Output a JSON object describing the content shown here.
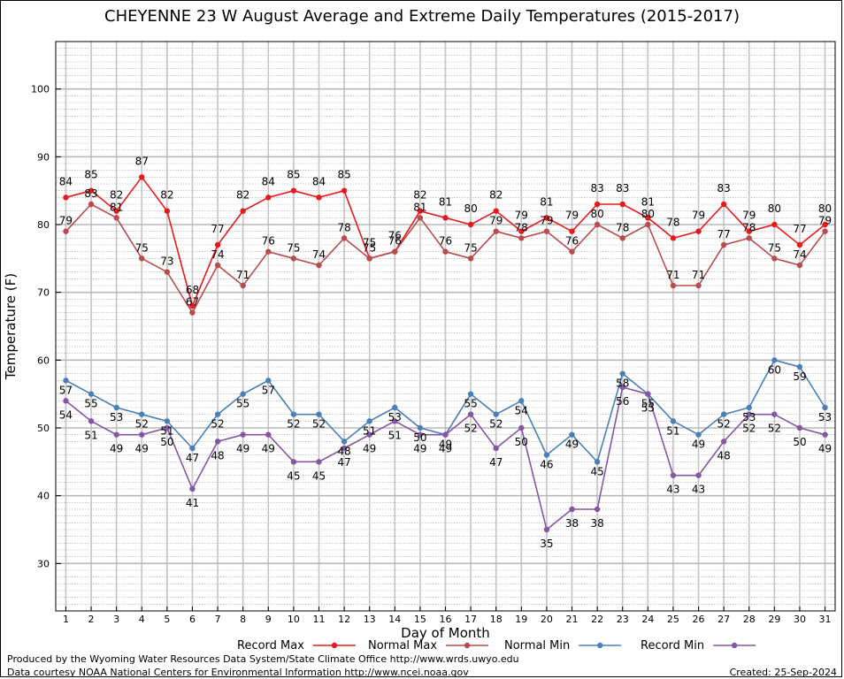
{
  "chart_data": {
    "type": "line",
    "title": "CHEYENNE 23 W August Average and Extreme Daily Temperatures (2015-2017)",
    "xlabel": "Day of Month",
    "ylabel": "Temperature (F)",
    "ylim": [
      23,
      107
    ],
    "yticks": [
      30,
      40,
      50,
      60,
      70,
      80,
      90,
      100
    ],
    "x": [
      1,
      2,
      3,
      4,
      5,
      6,
      7,
      8,
      9,
      10,
      11,
      12,
      13,
      14,
      15,
      16,
      17,
      18,
      19,
      20,
      21,
      22,
      23,
      24,
      25,
      26,
      27,
      28,
      29,
      30,
      31
    ],
    "grid": true,
    "legend_position": "bottom",
    "series": [
      {
        "name": "Record Max",
        "color": "#e8191c",
        "label_offset": -14,
        "values": [
          84,
          85,
          82,
          87,
          82,
          68,
          77,
          82,
          84,
          85,
          84,
          85,
          75,
          76,
          82,
          81,
          80,
          82,
          79,
          81,
          79,
          83,
          83,
          81,
          78,
          79,
          83,
          79,
          80,
          77,
          80
        ]
      },
      {
        "name": "Normal Max",
        "color": "#b84b4e",
        "label_offset": -8,
        "values": [
          79,
          83,
          81,
          75,
          73,
          67,
          74,
          71,
          76,
          75,
          74,
          78,
          75,
          76,
          81,
          76,
          75,
          79,
          78,
          79,
          76,
          80,
          78,
          80,
          71,
          71,
          77,
          78,
          75,
          74,
          79
        ]
      },
      {
        "name": "Normal Min",
        "color": "#4a80b5",
        "label_offset": 15,
        "values": [
          57,
          55,
          53,
          52,
          51,
          47,
          52,
          55,
          57,
          52,
          52,
          48,
          51,
          53,
          50,
          49,
          55,
          52,
          54,
          46,
          49,
          45,
          58,
          55,
          51,
          49,
          52,
          53,
          60,
          59,
          53
        ]
      },
      {
        "name": "Record Min",
        "color": "#8456a3",
        "label_offset": 20,
        "values": [
          54,
          51,
          49,
          49,
          50,
          41,
          48,
          49,
          49,
          45,
          45,
          47,
          49,
          51,
          49,
          49,
          52,
          47,
          50,
          35,
          38,
          38,
          56,
          55,
          43,
          43,
          48,
          52,
          52,
          50,
          49
        ]
      }
    ]
  },
  "footer": {
    "line1": "Produced by the Wyoming Water Resources Data System/State Climate Office http://www.wrds.uwyo.edu",
    "line2": "Data courtesy NOAA National Centers for Environmental Information http://www.ncei.noaa.gov",
    "created": "Created:  25-Sep-2024"
  }
}
